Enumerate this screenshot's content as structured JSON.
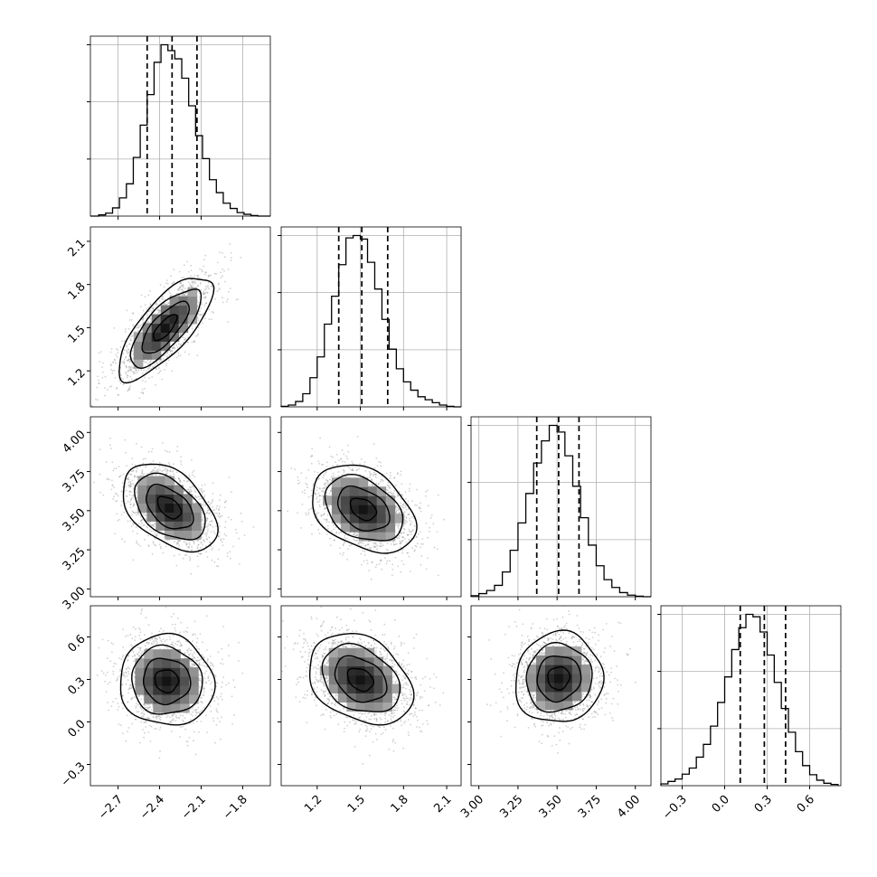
{
  "chart_data": {
    "type": "corner",
    "parameters": [
      {
        "key": "p0",
        "range": [
          -2.9,
          -1.6
        ],
        "ticks": [
          -2.7,
          -2.4,
          -2.1,
          -1.8
        ],
        "tick_labels": [
          "−2.7",
          "−2.4",
          "−2.1",
          "−1.8"
        ],
        "quantiles": {
          "q16": -2.49,
          "q50": -2.31,
          "q84": -2.13
        }
      },
      {
        "key": "p1",
        "range": [
          0.95,
          2.2
        ],
        "ticks": [
          1.2,
          1.5,
          1.8,
          2.1
        ],
        "tick_labels": [
          "1.2",
          "1.5",
          "1.8",
          "2.1"
        ],
        "quantiles": {
          "q16": 1.35,
          "q50": 1.51,
          "q84": 1.69
        }
      },
      {
        "key": "p2",
        "range": [
          2.95,
          4.1
        ],
        "ticks": [
          3.0,
          3.25,
          3.5,
          3.75,
          4.0
        ],
        "tick_labels": [
          "3.00",
          "3.25",
          "3.50",
          "3.75",
          "4.00"
        ],
        "quantiles": {
          "q16": 3.37,
          "q50": 3.51,
          "q84": 3.64
        }
      },
      {
        "key": "p3",
        "range": [
          -0.45,
          0.82
        ],
        "ticks": [
          -0.3,
          0.0,
          0.3,
          0.6
        ],
        "tick_labels": [
          "−0.3",
          "0.0",
          "0.3",
          "0.6"
        ],
        "quantiles": {
          "q16": 0.11,
          "q50": 0.28,
          "q84": 0.43
        }
      }
    ],
    "histograms": [
      {
        "param": "p0",
        "bins": [
          -2.9,
          -2.84,
          -2.79,
          -2.74,
          -2.69,
          -2.64,
          -2.59,
          -2.54,
          -2.49,
          -2.44,
          -2.39,
          -2.34,
          -2.29,
          -2.24,
          -2.19,
          -2.14,
          -2.09,
          -2.04,
          -1.99,
          -1.94,
          -1.89,
          -1.84,
          -1.79,
          -1.74,
          -1.69,
          -1.64,
          -1.6
        ],
        "counts": [
          0,
          2,
          5,
          14,
          31,
          55,
          100,
          155,
          207,
          262,
          292,
          282,
          268,
          235,
          188,
          137,
          98,
          62,
          40,
          22,
          13,
          6,
          3,
          1,
          0,
          0
        ]
      },
      {
        "param": "p1",
        "bins": [
          0.95,
          1.0,
          1.05,
          1.1,
          1.15,
          1.2,
          1.25,
          1.3,
          1.35,
          1.4,
          1.45,
          1.5,
          1.55,
          1.6,
          1.65,
          1.7,
          1.75,
          1.8,
          1.85,
          1.9,
          1.95,
          2.0,
          2.05,
          2.1,
          2.15,
          2.2
        ],
        "counts": [
          1,
          3,
          9,
          22,
          49,
          84,
          139,
          186,
          239,
          284,
          288,
          282,
          243,
          198,
          147,
          97,
          64,
          42,
          28,
          17,
          12,
          7,
          3,
          1,
          0
        ]
      },
      {
        "param": "p2",
        "bins": [
          2.95,
          3.0,
          3.05,
          3.1,
          3.15,
          3.2,
          3.25,
          3.3,
          3.35,
          3.4,
          3.45,
          3.5,
          3.55,
          3.6,
          3.65,
          3.7,
          3.75,
          3.8,
          3.85,
          3.9,
          3.95,
          4.0,
          4.05,
          4.1
        ],
        "counts": [
          2,
          6,
          12,
          22,
          48,
          90,
          143,
          200,
          259,
          302,
          332,
          319,
          273,
          214,
          153,
          100,
          60,
          33,
          18,
          8,
          3,
          1,
          0
        ]
      },
      {
        "param": "p3",
        "bins": [
          -0.45,
          -0.4,
          -0.35,
          -0.3,
          -0.25,
          -0.2,
          -0.15,
          -0.1,
          -0.05,
          0.0,
          0.05,
          0.1,
          0.15,
          0.2,
          0.25,
          0.3,
          0.35,
          0.4,
          0.45,
          0.5,
          0.55,
          0.6,
          0.65,
          0.7,
          0.75,
          0.8
        ],
        "counts": [
          3,
          7,
          11,
          19,
          29,
          47,
          68,
          98,
          137,
          179,
          224,
          260,
          282,
          278,
          253,
          215,
          170,
          127,
          88,
          56,
          33,
          18,
          9,
          4,
          2
        ]
      }
    ],
    "pair_panels": [
      {
        "x": "p0",
        "y": "p1",
        "center": [
          -2.36,
          1.5
        ],
        "sigma": [
          0.17,
          0.18
        ],
        "correlation": 0.75
      },
      {
        "x": "p0",
        "y": "p2",
        "center": [
          -2.33,
          3.52
        ],
        "sigma": [
          0.17,
          0.14
        ],
        "correlation": -0.45
      },
      {
        "x": "p1",
        "y": "p2",
        "center": [
          1.52,
          3.51
        ],
        "sigma": [
          0.18,
          0.14
        ],
        "correlation": -0.35
      },
      {
        "x": "p0",
        "y": "p3",
        "center": [
          -2.35,
          0.29
        ],
        "sigma": [
          0.17,
          0.16
        ],
        "correlation": -0.05
      },
      {
        "x": "p1",
        "y": "p3",
        "center": [
          1.5,
          0.3
        ],
        "sigma": [
          0.18,
          0.16
        ],
        "correlation": -0.3
      },
      {
        "x": "p2",
        "y": "p3",
        "center": [
          3.51,
          0.31
        ],
        "sigma": [
          0.14,
          0.16
        ],
        "correlation": 0.05
      }
    ],
    "contour_levels": [
      0.5,
      1.0,
      1.5,
      2.0
    ],
    "grid": true,
    "quantile_line_style": "dashed",
    "histogram_style": "step",
    "colors": {
      "line": "#000000",
      "grid": "#b0b0b0",
      "points": "#9a9a9a",
      "density_max": "#000000",
      "density_min": "#ffffff"
    }
  }
}
